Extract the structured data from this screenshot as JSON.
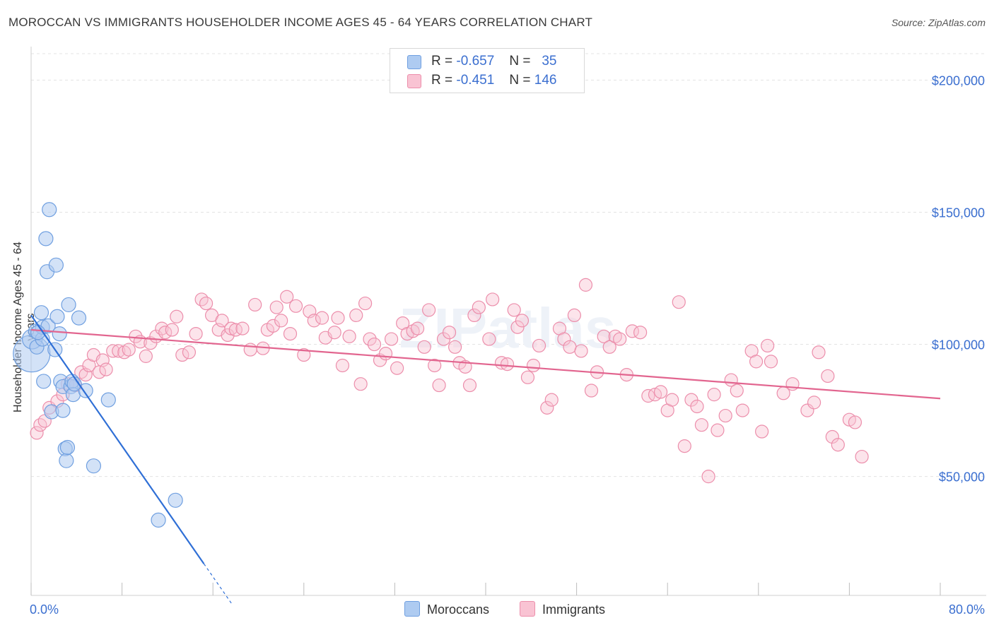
{
  "title": "MOROCCAN VS IMMIGRANTS HOUSEHOLDER INCOME AGES 45 - 64 YEARS CORRELATION CHART",
  "source": "Source: ZipAtlas.com",
  "legend": {
    "row1": {
      "r_label": "R =",
      "r_value": "-0.657",
      "n_label": "N =",
      "n_value": "35"
    },
    "row2": {
      "r_label": "R =",
      "r_value": "-0.451",
      "n_label": "N =",
      "n_value": "146"
    }
  },
  "bottom_legend": {
    "moroccans": "Moroccans",
    "immigrants": "Immigrants"
  },
  "colors": {
    "moroccans_fill": "#aecbf1",
    "moroccans_stroke": "#6f9fe0",
    "moroccans_line": "#2f6fd6",
    "immigrants_fill": "#f9c3d3",
    "immigrants_stroke": "#ec8eab",
    "immigrants_line": "#e2658f",
    "tick_label": "#3b6fd0"
  },
  "chart_data": {
    "type": "scatter",
    "title": "MOROCCAN VS IMMIGRANTS HOUSEHOLDER INCOME AGES 45 - 64 YEARS CORRELATION CHART",
    "xlabel": "",
    "ylabel": "Householder Income Ages 45 - 64 years",
    "xlim": [
      0,
      80
    ],
    "ylim": [
      5000,
      210000
    ],
    "x_tick_labels": [
      "0.0%",
      "80.0%"
    ],
    "y_ticks": [
      50000,
      100000,
      150000,
      200000
    ],
    "y_tick_labels": [
      "$50,000",
      "$100,000",
      "$150,000",
      "$200,000"
    ],
    "grid": true,
    "watermark": "ZIPatlas",
    "series": [
      {
        "name": "Moroccans",
        "r": -0.657,
        "n": 35,
        "trend": {
          "x0": 0,
          "y0": 111000,
          "x1": 15.2,
          "y1": 17000,
          "dash_to_x": 17.7
        },
        "points": [
          [
            0.05,
            96500,
            26
          ],
          [
            0.1,
            102000,
            14
          ],
          [
            0.4,
            105000,
            10
          ],
          [
            0.5,
            99000,
            10
          ],
          [
            0.9,
            112000,
            10
          ],
          [
            1.0,
            102000,
            10
          ],
          [
            1.0,
            106500,
            10
          ],
          [
            1.1,
            86000,
            10
          ],
          [
            1.3,
            140000,
            10
          ],
          [
            1.4,
            127500,
            10
          ],
          [
            1.5,
            107000,
            10
          ],
          [
            1.6,
            151000,
            10
          ],
          [
            1.8,
            74500,
            10
          ],
          [
            2.1,
            98000,
            10
          ],
          [
            2.2,
            130000,
            10
          ],
          [
            2.3,
            110500,
            10
          ],
          [
            2.5,
            104000,
            10
          ],
          [
            2.6,
            86000,
            10
          ],
          [
            2.8,
            84000,
            10
          ],
          [
            2.8,
            75000,
            10
          ],
          [
            3.0,
            60500,
            10
          ],
          [
            3.1,
            56000,
            10
          ],
          [
            3.2,
            61000,
            10
          ],
          [
            3.3,
            115000,
            10
          ],
          [
            3.5,
            84000,
            10
          ],
          [
            3.6,
            86000,
            10
          ],
          [
            3.7,
            81000,
            10
          ],
          [
            4.2,
            110000,
            10
          ],
          [
            4.8,
            82500,
            10
          ],
          [
            6.8,
            79000,
            10
          ],
          [
            5.5,
            54000,
            10
          ],
          [
            12.7,
            41000,
            10
          ],
          [
            11.2,
            33500,
            10
          ],
          [
            3.8,
            85000,
            10
          ],
          [
            0.6,
            104500,
            10
          ]
        ]
      },
      {
        "name": "Immigrants",
        "r": -0.451,
        "n": 146,
        "trend": {
          "x0": 0,
          "y0": 105500,
          "x1": 80,
          "y1": 79500
        },
        "points": [
          [
            0.5,
            66500
          ],
          [
            0.8,
            69500
          ],
          [
            1.2,
            71000
          ],
          [
            1.6,
            76000
          ],
          [
            2.3,
            78500
          ],
          [
            2.8,
            81000
          ],
          [
            3.2,
            85000
          ],
          [
            3.9,
            84500
          ],
          [
            4.4,
            89500
          ],
          [
            4.8,
            88500
          ],
          [
            5.1,
            92000
          ],
          [
            5.5,
            96000
          ],
          [
            6.0,
            89500
          ],
          [
            6.3,
            94000
          ],
          [
            6.6,
            90500
          ],
          [
            7.2,
            97500
          ],
          [
            7.7,
            97500
          ],
          [
            8.2,
            97000
          ],
          [
            8.6,
            98000
          ],
          [
            9.2,
            103000
          ],
          [
            9.6,
            101000
          ],
          [
            10.1,
            95500
          ],
          [
            10.5,
            100500
          ],
          [
            11.0,
            103000
          ],
          [
            11.5,
            106000
          ],
          [
            11.8,
            104500
          ],
          [
            12.4,
            105500
          ],
          [
            12.8,
            110500
          ],
          [
            13.3,
            96000
          ],
          [
            13.9,
            97000
          ],
          [
            14.5,
            104000
          ],
          [
            15.0,
            117000
          ],
          [
            15.4,
            115500
          ],
          [
            15.9,
            111000
          ],
          [
            16.5,
            105500
          ],
          [
            16.8,
            109000
          ],
          [
            17.3,
            103500
          ],
          [
            17.6,
            106000
          ],
          [
            18.0,
            105500
          ],
          [
            18.6,
            106000
          ],
          [
            19.3,
            98000
          ],
          [
            19.7,
            115000
          ],
          [
            20.4,
            98500
          ],
          [
            20.8,
            105500
          ],
          [
            21.3,
            107000
          ],
          [
            21.6,
            114000
          ],
          [
            22.0,
            109000
          ],
          [
            22.5,
            118000
          ],
          [
            22.8,
            104000
          ],
          [
            23.3,
            114500
          ],
          [
            24.0,
            96000
          ],
          [
            24.5,
            112500
          ],
          [
            24.9,
            109000
          ],
          [
            25.6,
            110000
          ],
          [
            25.9,
            102500
          ],
          [
            26.7,
            104500
          ],
          [
            27.0,
            110000
          ],
          [
            27.4,
            92000
          ],
          [
            28.0,
            103000
          ],
          [
            28.6,
            111000
          ],
          [
            29.0,
            85000
          ],
          [
            29.4,
            115500
          ],
          [
            29.8,
            102000
          ],
          [
            30.2,
            100000
          ],
          [
            30.7,
            94000
          ],
          [
            31.2,
            96500
          ],
          [
            31.7,
            102000
          ],
          [
            32.2,
            91000
          ],
          [
            32.7,
            108000
          ],
          [
            33.1,
            104000
          ],
          [
            33.6,
            105000
          ],
          [
            34.0,
            106000
          ],
          [
            34.6,
            99000
          ],
          [
            35.0,
            113000
          ],
          [
            35.5,
            92000
          ],
          [
            35.9,
            84500
          ],
          [
            36.3,
            102000
          ],
          [
            36.8,
            104500
          ],
          [
            37.3,
            99000
          ],
          [
            37.7,
            93000
          ],
          [
            38.2,
            91500
          ],
          [
            38.6,
            84500
          ],
          [
            39.0,
            111000
          ],
          [
            39.4,
            114000
          ],
          [
            40.3,
            102000
          ],
          [
            40.6,
            117000
          ],
          [
            41.4,
            93000
          ],
          [
            41.9,
            92500
          ],
          [
            42.5,
            113000
          ],
          [
            42.8,
            106500
          ],
          [
            43.2,
            109000
          ],
          [
            43.7,
            87500
          ],
          [
            44.2,
            92000
          ],
          [
            44.7,
            99500
          ],
          [
            45.4,
            76000
          ],
          [
            45.8,
            79000
          ],
          [
            46.5,
            106000
          ],
          [
            46.9,
            102000
          ],
          [
            47.4,
            99000
          ],
          [
            47.8,
            111000
          ],
          [
            48.4,
            97500
          ],
          [
            48.8,
            122500
          ],
          [
            49.3,
            82500
          ],
          [
            49.8,
            89500
          ],
          [
            50.4,
            103000
          ],
          [
            50.9,
            99000
          ],
          [
            51.4,
            103000
          ],
          [
            51.8,
            102000
          ],
          [
            52.4,
            88500
          ],
          [
            52.9,
            105000
          ],
          [
            53.6,
            104500
          ],
          [
            54.3,
            80500
          ],
          [
            54.9,
            81000
          ],
          [
            55.4,
            82000
          ],
          [
            56.0,
            75000
          ],
          [
            56.4,
            79000
          ],
          [
            57.0,
            116000
          ],
          [
            57.5,
            61500
          ],
          [
            58.1,
            79000
          ],
          [
            58.6,
            76500
          ],
          [
            59.0,
            69500
          ],
          [
            59.6,
            50000
          ],
          [
            60.1,
            81000
          ],
          [
            60.4,
            67500
          ],
          [
            61.1,
            73000
          ],
          [
            61.6,
            86500
          ],
          [
            62.1,
            82500
          ],
          [
            62.6,
            75000
          ],
          [
            63.4,
            97500
          ],
          [
            63.8,
            93500
          ],
          [
            64.3,
            67000
          ],
          [
            64.8,
            99500
          ],
          [
            65.1,
            93500
          ],
          [
            66.2,
            81500
          ],
          [
            67.0,
            85000
          ],
          [
            68.3,
            75000
          ],
          [
            68.9,
            78000
          ],
          [
            69.3,
            97000
          ],
          [
            70.1,
            88000
          ],
          [
            70.5,
            65000
          ],
          [
            71.0,
            62000
          ],
          [
            72.0,
            71500
          ],
          [
            72.5,
            70500
          ],
          [
            73.1,
            57500
          ]
        ]
      }
    ]
  }
}
